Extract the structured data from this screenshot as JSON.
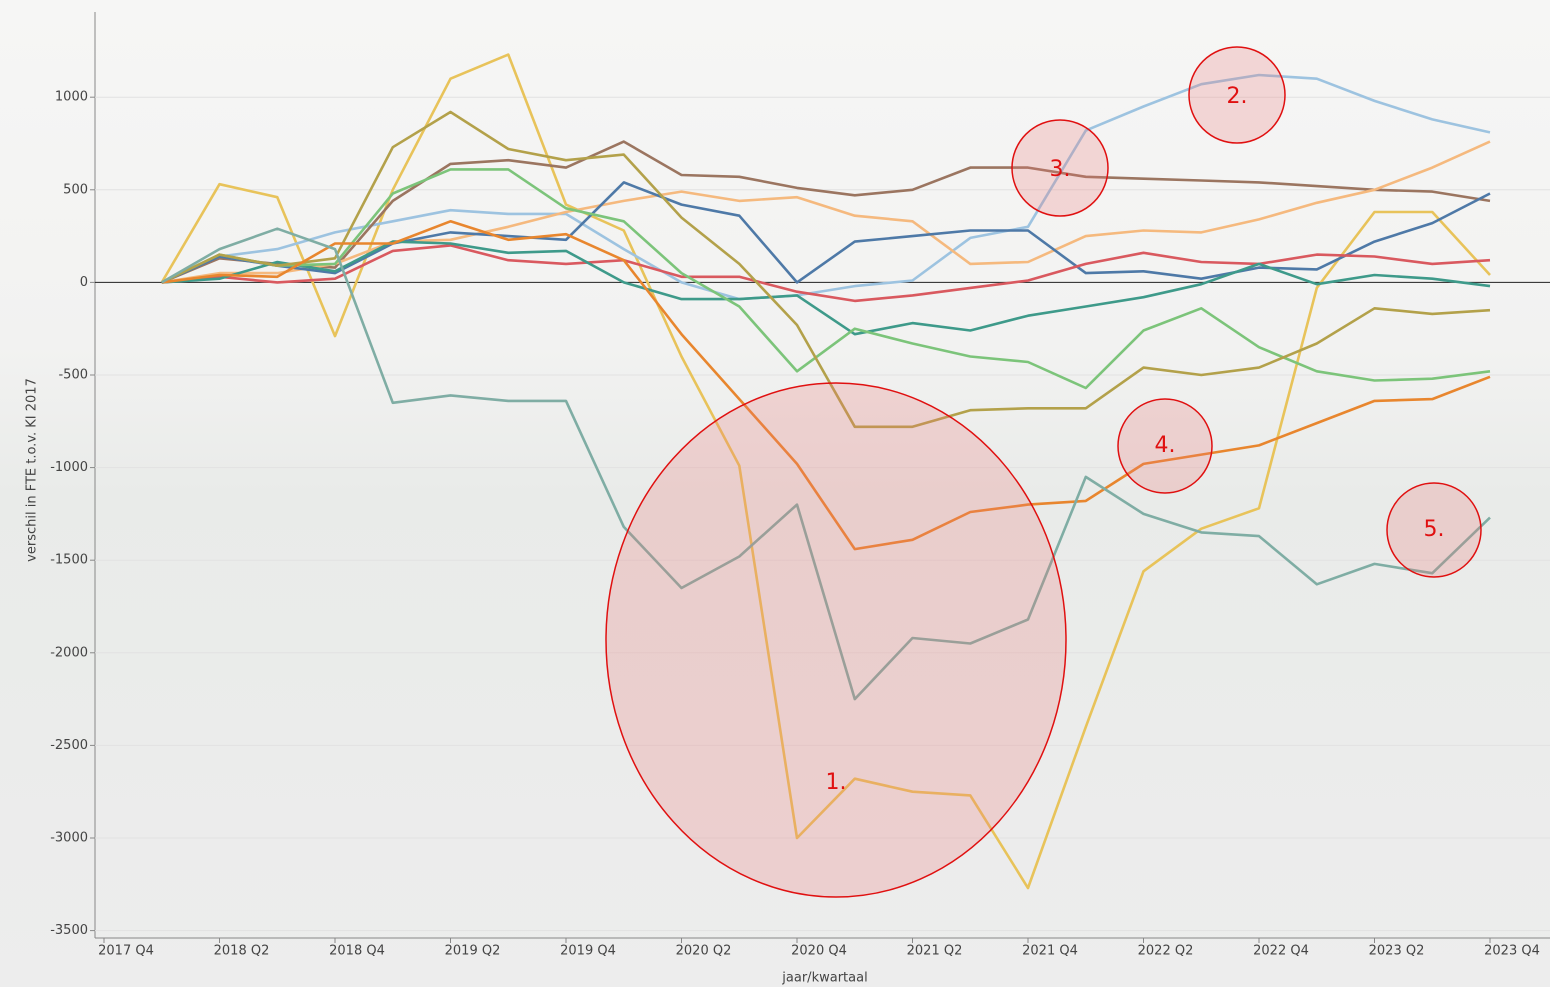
{
  "chart_data": {
    "type": "line",
    "y_label": "verschil in FTE t.o.v. KI 2017",
    "x_label": "jaar/kwartaal",
    "categories": [
      "2017 Q4",
      null,
      "2018 Q2",
      null,
      "2018 Q4",
      null,
      "2019 Q2",
      null,
      "2019 Q4",
      null,
      "2020 Q2",
      null,
      "2020 Q4",
      null,
      "2021 Q2",
      null,
      "2021 Q4",
      null,
      "2022 Q2",
      null,
      "2022 Q4",
      null,
      "2023 Q2",
      null,
      "2023 Q4"
    ],
    "ylim": [
      -3540,
      1460
    ],
    "yticks": [
      -3500,
      -3000,
      -2500,
      -2000,
      -1500,
      -1000,
      -500,
      0,
      500,
      1000
    ],
    "grid": true,
    "series": [
      {
        "color": "#e8c35a",
        "values": [
          null,
          0,
          530,
          460,
          -290,
          500,
          1100,
          1230,
          420,
          280,
          -400,
          -990,
          -3000,
          -2680,
          -2750,
          -2770,
          -3270,
          -2400,
          -1560,
          -1330,
          -1220,
          -30,
          380,
          380,
          40
        ]
      },
      {
        "color": "#9dc3e0",
        "values": [
          null,
          0,
          140,
          180,
          270,
          330,
          390,
          370,
          370,
          180,
          0,
          -90,
          -70,
          -20,
          10,
          240,
          300,
          820,
          950,
          1070,
          1120,
          1100,
          980,
          880,
          810
        ]
      },
      {
        "color": "#9b7560",
        "values": [
          null,
          0,
          130,
          100,
          80,
          440,
          640,
          660,
          620,
          760,
          580,
          570,
          510,
          470,
          500,
          620,
          620,
          570,
          560,
          550,
          540,
          520,
          500,
          490,
          440
        ]
      },
      {
        "color": "#f5b97e",
        "values": [
          null,
          0,
          50,
          50,
          100,
          220,
          230,
          300,
          380,
          440,
          490,
          440,
          460,
          360,
          330,
          100,
          110,
          250,
          280,
          270,
          340,
          430,
          500,
          620,
          760
        ]
      },
      {
        "color": "#4e79a7",
        "values": [
          null,
          0,
          140,
          90,
          50,
          210,
          270,
          250,
          230,
          540,
          420,
          360,
          0,
          220,
          250,
          280,
          280,
          50,
          60,
          20,
          80,
          70,
          220,
          320,
          480
        ]
      },
      {
        "color": "#d9595f",
        "values": [
          null,
          0,
          30,
          0,
          20,
          170,
          200,
          120,
          100,
          120,
          30,
          30,
          -50,
          -100,
          -70,
          -30,
          10,
          100,
          160,
          110,
          100,
          150,
          140,
          100,
          120
        ]
      },
      {
        "color": "#3e9a8a",
        "values": [
          null,
          0,
          20,
          110,
          60,
          220,
          210,
          160,
          170,
          0,
          -90,
          -90,
          -70,
          -280,
          -220,
          -260,
          -180,
          -130,
          -80,
          -10,
          100,
          -10,
          40,
          20,
          -20
        ]
      },
      {
        "color": "#7cc47a",
        "values": [
          null,
          0,
          150,
          90,
          100,
          480,
          610,
          610,
          400,
          330,
          50,
          -130,
          -480,
          -250,
          -330,
          -400,
          -430,
          -570,
          -260,
          -140,
          -350,
          -480,
          -530,
          -520,
          -480
        ]
      },
      {
        "color": "#b3a14a",
        "values": [
          null,
          0,
          150,
          90,
          130,
          730,
          920,
          720,
          660,
          690,
          350,
          100,
          -230,
          -780,
          -780,
          -690,
          -680,
          -680,
          -460,
          -500,
          -460,
          -330,
          -140,
          -170,
          -150
        ]
      },
      {
        "color": "#e8862e",
        "values": [
          null,
          0,
          40,
          30,
          210,
          210,
          330,
          230,
          260,
          120,
          -280,
          -630,
          -980,
          -1440,
          -1390,
          -1240,
          -1200,
          -1180,
          -980,
          -930,
          -880,
          -760,
          -640,
          -630,
          -510
        ]
      },
      {
        "color": "#7fada4",
        "values": [
          null,
          0,
          180,
          290,
          180,
          -650,
          -610,
          -640,
          -640,
          -1320,
          -1650,
          -1480,
          -1200,
          -2250,
          -1920,
          -1950,
          -1820,
          -1050,
          -1250,
          -1350,
          -1370,
          -1630,
          -1520,
          -1570,
          -1270
        ]
      }
    ],
    "annotations": [
      "1.",
      "2.",
      "3.",
      "4.",
      "5."
    ]
  }
}
